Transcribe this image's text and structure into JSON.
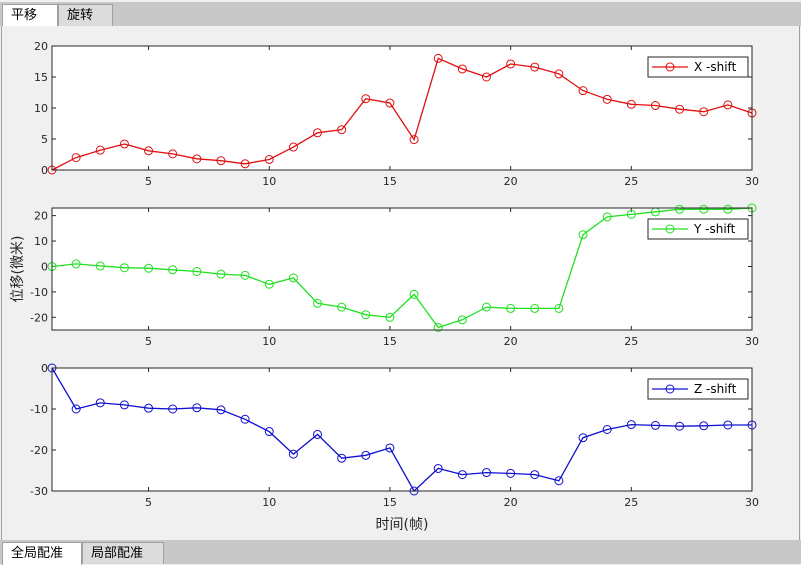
{
  "top_tabs": [
    {
      "label": "平移",
      "active": true
    },
    {
      "label": "旋转",
      "active": false
    }
  ],
  "bottom_tabs": [
    {
      "label": "全局配准",
      "active": true
    },
    {
      "label": "局部配准",
      "active": false
    }
  ],
  "chart_data": [
    {
      "type": "line",
      "series": [
        {
          "name": "X -shift",
          "color": "#e01010",
          "x": [
            1,
            2,
            3,
            4,
            5,
            6,
            7,
            8,
            9,
            10,
            11,
            12,
            13,
            14,
            15,
            16,
            17,
            18,
            19,
            20,
            21,
            22,
            23,
            24,
            25,
            26,
            27,
            28,
            29,
            30
          ],
          "values": [
            0,
            2,
            3.2,
            4.2,
            3.1,
            2.6,
            1.8,
            1.5,
            1.0,
            1.7,
            3.7,
            6.0,
            6.5,
            11.5,
            10.8,
            4.9,
            18.0,
            16.3,
            15.0,
            17.1,
            16.6,
            15.5,
            12.8,
            11.4,
            10.6,
            10.4,
            9.8,
            9.4,
            10.5,
            9.2
          ]
        }
      ],
      "xlim": [
        1,
        30
      ],
      "ylim": [
        0,
        20
      ],
      "xticks": [
        5,
        10,
        15,
        20,
        25,
        30
      ],
      "yticks": [
        0,
        5,
        10,
        15,
        20
      ],
      "legend": "top-right"
    },
    {
      "type": "line",
      "series": [
        {
          "name": "Y -shift",
          "color": "#20e020",
          "x": [
            1,
            2,
            3,
            4,
            5,
            6,
            7,
            8,
            9,
            10,
            11,
            12,
            13,
            14,
            15,
            16,
            17,
            18,
            19,
            20,
            21,
            22,
            23,
            24,
            25,
            26,
            27,
            28,
            29,
            30
          ],
          "values": [
            0,
            1,
            0.2,
            -0.5,
            -0.7,
            -1.3,
            -2.0,
            -3.0,
            -3.5,
            -7.0,
            -4.5,
            -14.5,
            -16.0,
            -19.0,
            -20.0,
            -11.0,
            -24.0,
            -21.0,
            -16.0,
            -16.5,
            -16.5,
            -16.5,
            12.5,
            19.5,
            20.5,
            21.5,
            22.5,
            22.5,
            22.5,
            23.0
          ]
        }
      ],
      "xlim": [
        1,
        30
      ],
      "ylim": [
        -25,
        23
      ],
      "xticks": [
        5,
        10,
        15,
        20,
        25,
        30
      ],
      "yticks": [
        -20,
        -10,
        0,
        10,
        20
      ],
      "ylabel": "位移(微米)",
      "legend": "top-right"
    },
    {
      "type": "line",
      "series": [
        {
          "name": "Z -shift",
          "color": "#1010d0",
          "x": [
            1,
            2,
            3,
            4,
            5,
            6,
            7,
            8,
            9,
            10,
            11,
            12,
            13,
            14,
            15,
            16,
            17,
            18,
            19,
            20,
            21,
            22,
            23,
            24,
            25,
            26,
            27,
            28,
            29,
            30
          ],
          "values": [
            0,
            -10,
            -8.5,
            -9,
            -9.8,
            -10,
            -9.7,
            -10.2,
            -12.5,
            -15.5,
            -21,
            -16.2,
            -22,
            -21.3,
            -19.5,
            -30,
            -24.5,
            -26,
            -25.5,
            -25.7,
            -26,
            -27.5,
            -17,
            -15,
            -13.8,
            -14,
            -14.2,
            -14.1,
            -13.9,
            -13.9
          ]
        }
      ],
      "xlim": [
        1,
        30
      ],
      "ylim": [
        -30,
        0
      ],
      "xticks": [
        5,
        10,
        15,
        20,
        25,
        30
      ],
      "yticks": [
        -30,
        -20,
        -10,
        0
      ],
      "xlabel": "时间(帧)",
      "legend": "top-right"
    }
  ]
}
